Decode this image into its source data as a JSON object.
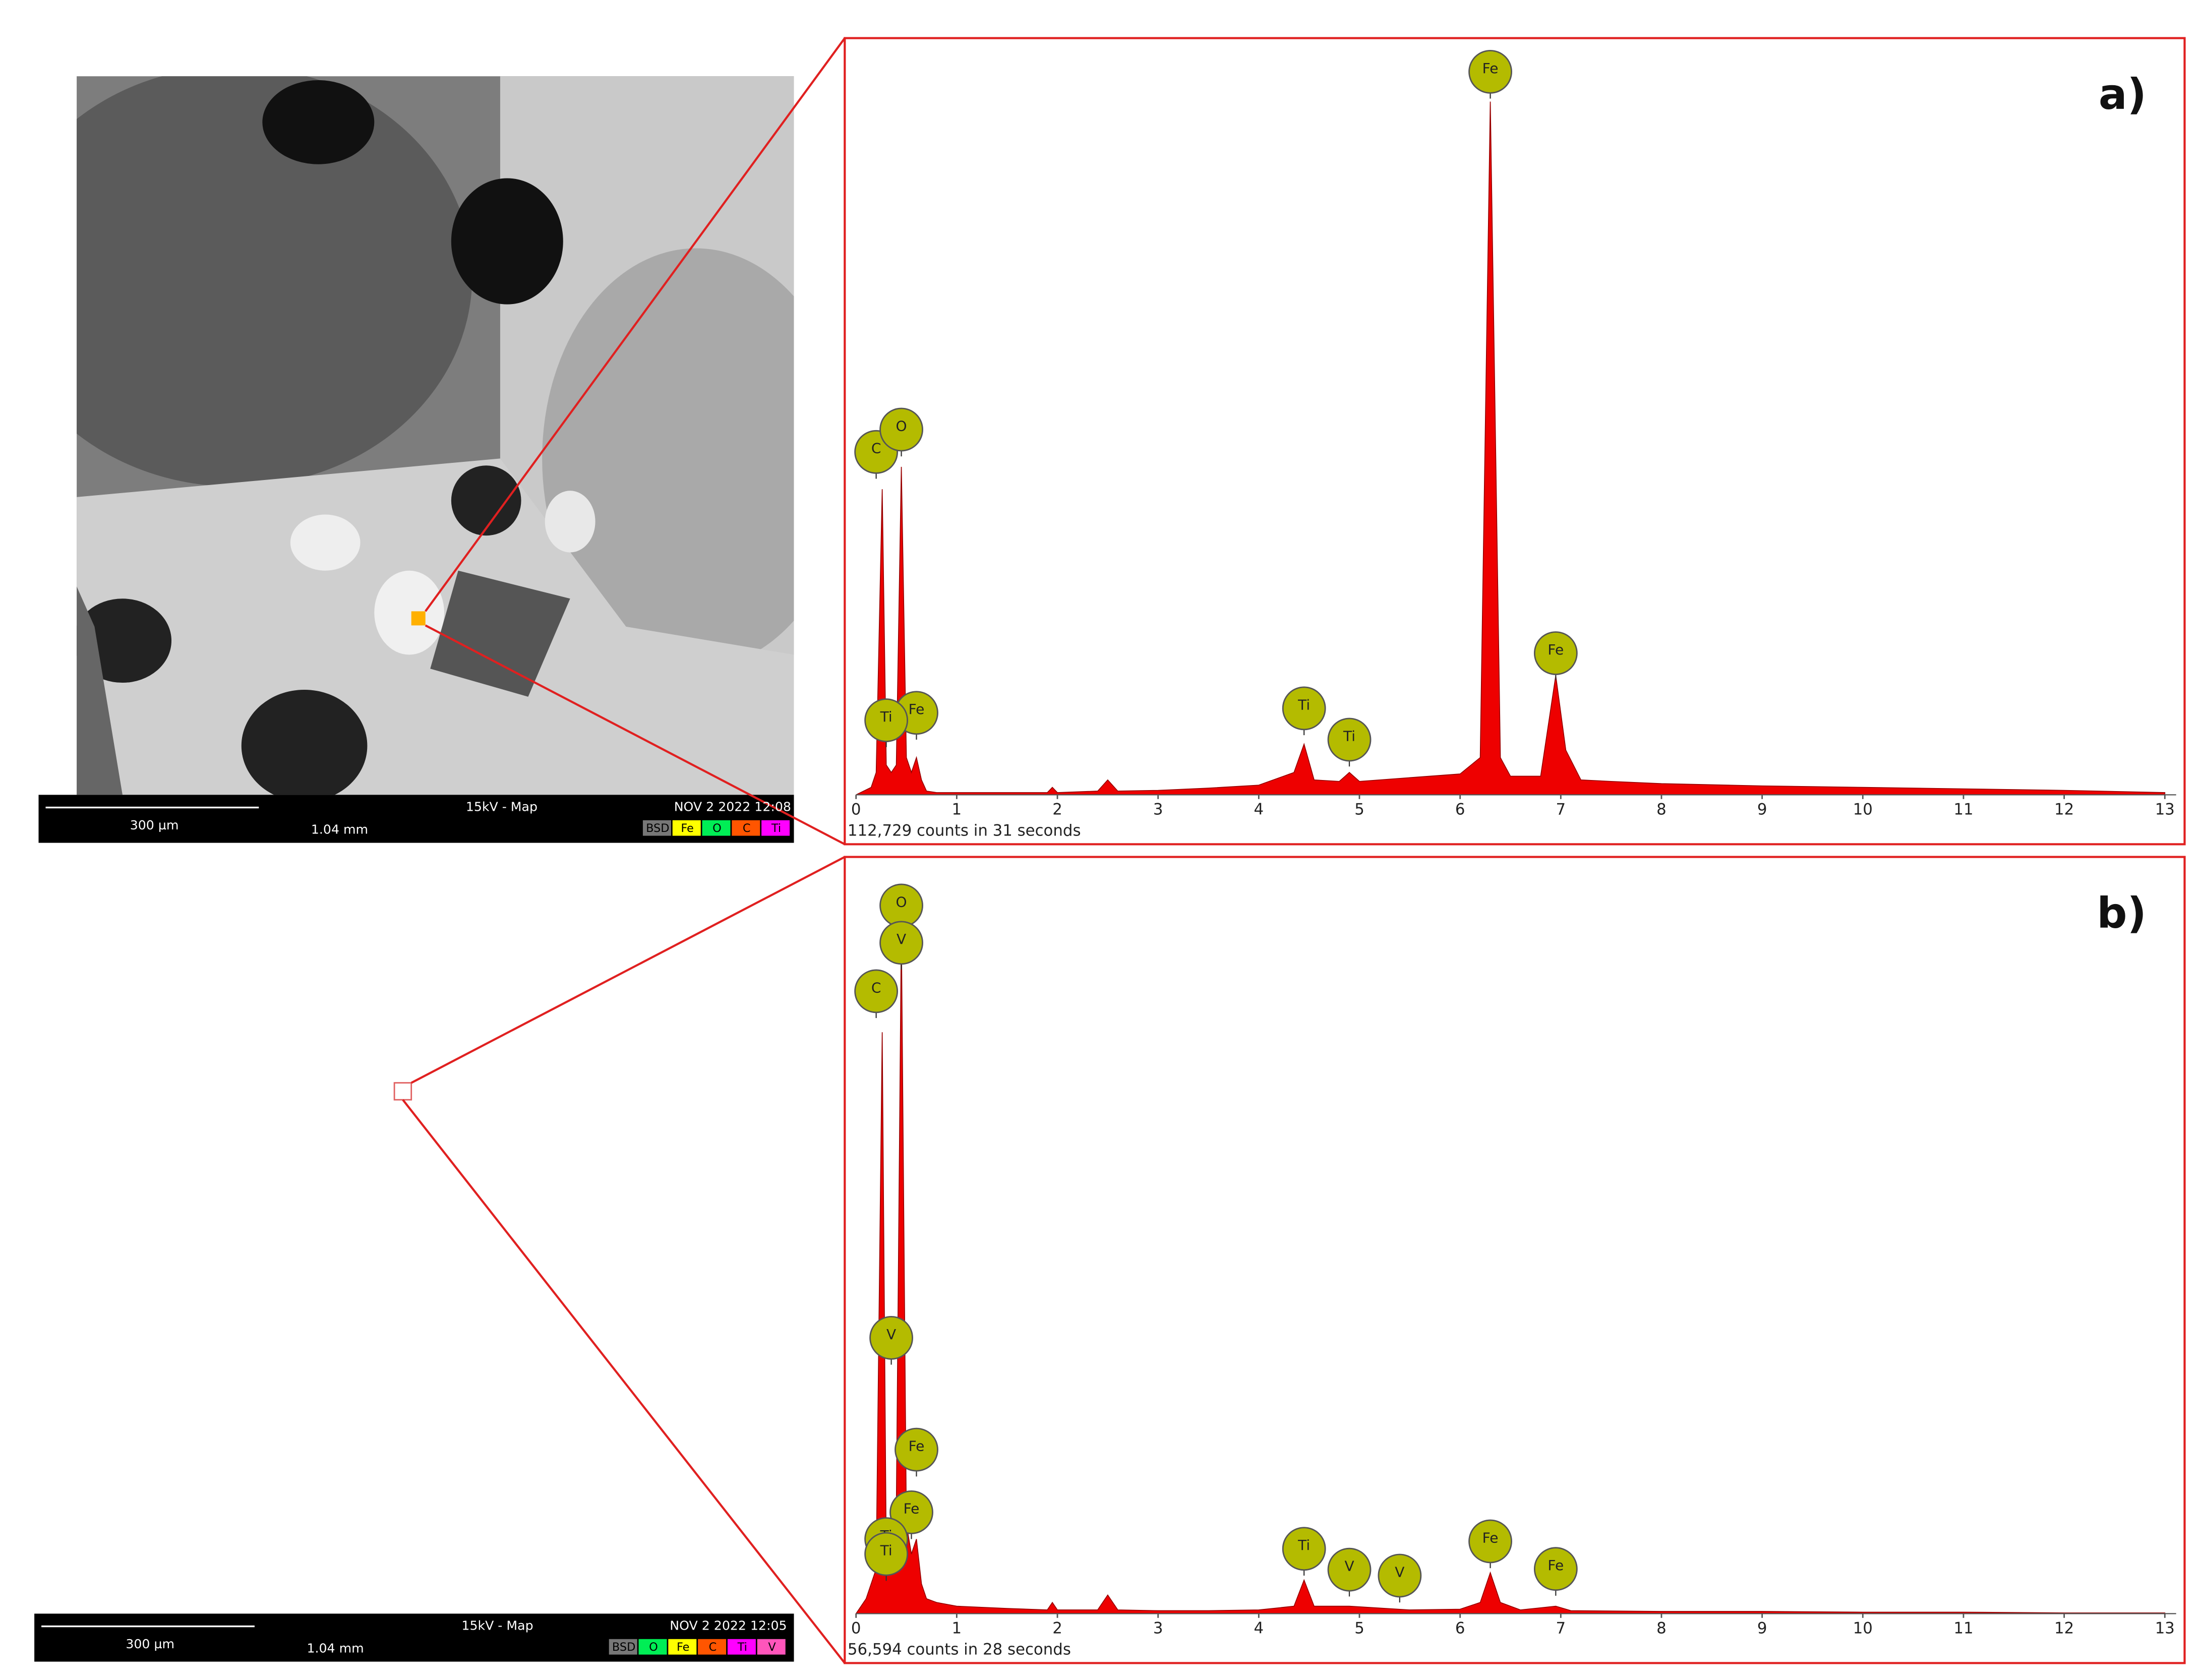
{
  "sem_images": [
    {
      "scale_bar": "300 µm",
      "field_width": "1.04 mm",
      "mode": "15kV - Map",
      "date": "NOV 2 2022 12:08",
      "channels": [
        {
          "name": "BSD",
          "color": "#777777"
        },
        {
          "name": "Fe",
          "color": "#ffff00"
        },
        {
          "name": "O",
          "color": "#00ee55"
        },
        {
          "name": "C",
          "color": "#ff5500"
        },
        {
          "name": "Ti",
          "color": "#ff00ff"
        }
      ]
    },
    {
      "scale_bar": "300 µm",
      "field_width": "1.04 mm",
      "mode": "15kV - Map",
      "date": "NOV 2 2022 12:05",
      "channels": [
        {
          "name": "BSD",
          "color": "#777777"
        },
        {
          "name": "O",
          "color": "#00ee55"
        },
        {
          "name": "Fe",
          "color": "#ffff00"
        },
        {
          "name": "C",
          "color": "#ff5500"
        },
        {
          "name": "Ti",
          "color": "#ff00ff"
        },
        {
          "name": "V",
          "color": "#ff55bb"
        }
      ]
    }
  ],
  "chart_data": [
    {
      "type": "area",
      "panel_label": "a)",
      "footnote": "112,729 counts in 31 seconds",
      "color": "#ee0000",
      "xlim": [
        0,
        13
      ],
      "ylim": [
        0,
        100
      ],
      "xticks": [
        0,
        1,
        2,
        3,
        4,
        5,
        6,
        7,
        8,
        9,
        10,
        11,
        12,
        13
      ],
      "x": [
        0,
        0.15,
        0.2,
        0.26,
        0.3,
        0.35,
        0.4,
        0.45,
        0.5,
        0.55,
        0.6,
        0.65,
        0.7,
        0.8,
        1.0,
        1.5,
        1.9,
        1.95,
        2.0,
        2.4,
        2.5,
        2.6,
        3,
        3.5,
        4.0,
        4.35,
        4.45,
        4.55,
        4.8,
        4.9,
        5.0,
        5.5,
        6.0,
        6.2,
        6.3,
        6.4,
        6.5,
        6.8,
        6.95,
        7.05,
        7.2,
        7.5,
        8,
        9,
        10,
        11,
        12,
        13
      ],
      "values": [
        0,
        1,
        3,
        41,
        4,
        3,
        4,
        44,
        5,
        3,
        5,
        2,
        0.5,
        0.3,
        0.3,
        0.3,
        0.3,
        1,
        0.3,
        0.5,
        2,
        0.5,
        0.6,
        0.9,
        1.3,
        3,
        6.8,
        2,
        1.8,
        3,
        1.8,
        2.3,
        2.8,
        5,
        93,
        5,
        2.5,
        2.5,
        16,
        6,
        2,
        1.8,
        1.5,
        1.2,
        1,
        0.8,
        0.6,
        0.3
      ],
      "annotations": [
        {
          "text": "C",
          "x": 0.2,
          "y": 46
        },
        {
          "text": "O",
          "x": 0.45,
          "y": 49
        },
        {
          "text": "Fe",
          "x": 0.6,
          "y": 11
        },
        {
          "text": "Ti",
          "x": 0.3,
          "y": 10
        },
        {
          "text": "Ti",
          "x": 4.45,
          "y": 11.6
        },
        {
          "text": "Ti",
          "x": 4.9,
          "y": 7.4
        },
        {
          "text": "Fe",
          "x": 6.3,
          "y": 97
        },
        {
          "text": "Fe",
          "x": 6.95,
          "y": 19
        }
      ]
    },
    {
      "type": "area",
      "panel_label": "b)",
      "footnote": "56,594 counts in 28 seconds",
      "color": "#ee0000",
      "xlim": [
        0,
        13
      ],
      "ylim": [
        0,
        100
      ],
      "xticks": [
        0,
        1,
        2,
        3,
        4,
        5,
        6,
        7,
        8,
        9,
        10,
        11,
        12,
        13
      ],
      "x": [
        0,
        0.1,
        0.2,
        0.26,
        0.3,
        0.35,
        0.4,
        0.45,
        0.5,
        0.55,
        0.6,
        0.65,
        0.7,
        0.8,
        1.0,
        1.5,
        1.9,
        1.95,
        2.0,
        2.4,
        2.5,
        2.6,
        3,
        3.5,
        4.0,
        4.35,
        4.45,
        4.55,
        4.9,
        5.5,
        6.0,
        6.2,
        6.3,
        6.4,
        6.6,
        6.95,
        7.1,
        8,
        9,
        10,
        11,
        12,
        13
      ],
      "values": [
        0,
        2,
        6,
        78,
        8,
        10,
        14,
        92,
        12,
        8,
        10,
        4,
        2,
        1.5,
        1,
        0.7,
        0.5,
        1.5,
        0.5,
        0.5,
        2.5,
        0.5,
        0.4,
        0.4,
        0.5,
        1,
        4.5,
        1,
        1,
        0.5,
        0.6,
        1.5,
        5.5,
        1.5,
        0.5,
        1,
        0.4,
        0.3,
        0.3,
        0.2,
        0.2,
        0.1,
        0.1
      ],
      "annotations": [
        {
          "text": "O",
          "x": 0.45,
          "y": 95
        },
        {
          "text": "V",
          "x": 0.45,
          "y": 90
        },
        {
          "text": "C",
          "x": 0.2,
          "y": 83.5
        },
        {
          "text": "V",
          "x": 0.35,
          "y": 37
        },
        {
          "text": "Fe",
          "x": 0.6,
          "y": 22
        },
        {
          "text": "Fe",
          "x": 0.55,
          "y": 13.6
        },
        {
          "text": "Ti",
          "x": 0.3,
          "y": 10
        },
        {
          "text": "Ti",
          "x": 0.3,
          "y": 8
        },
        {
          "text": "Ti",
          "x": 4.45,
          "y": 8.7
        },
        {
          "text": "V",
          "x": 4.9,
          "y": 5.9
        },
        {
          "text": "V",
          "x": 5.4,
          "y": 5.1
        },
        {
          "text": "Fe",
          "x": 6.3,
          "y": 9.7
        },
        {
          "text": "Fe",
          "x": 6.95,
          "y": 6
        }
      ]
    }
  ]
}
